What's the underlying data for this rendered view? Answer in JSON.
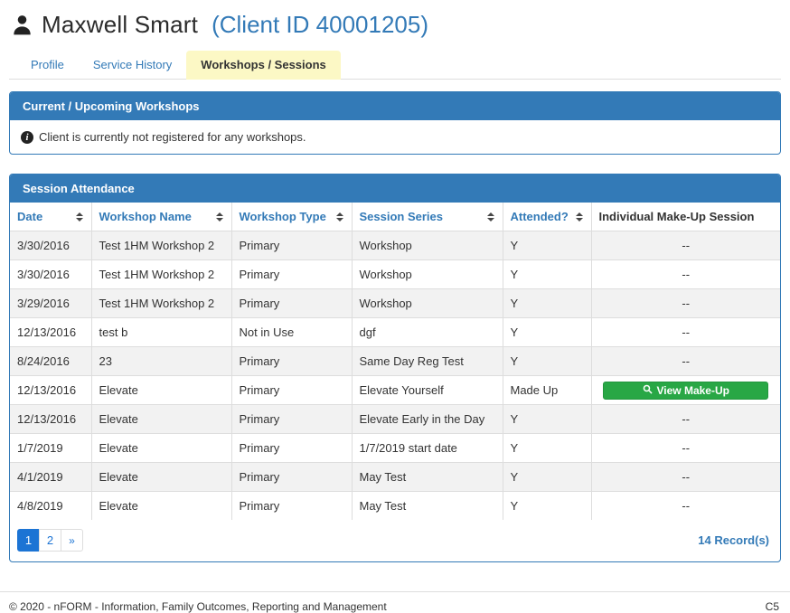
{
  "header": {
    "client_name": "Maxwell Smart",
    "client_id": "(Client ID 40001205)"
  },
  "tabs": [
    {
      "label": "Profile",
      "active": false
    },
    {
      "label": "Service History",
      "active": false
    },
    {
      "label": "Workshops / Sessions",
      "active": true
    }
  ],
  "workshops_panel": {
    "title": "Current / Upcoming Workshops",
    "empty_message": "Client is currently not registered for any workshops."
  },
  "attendance_panel": {
    "title": "Session Attendance",
    "columns": [
      {
        "label": "Date",
        "sortable": true
      },
      {
        "label": "Workshop Name",
        "sortable": true
      },
      {
        "label": "Workshop Type",
        "sortable": true
      },
      {
        "label": "Session Series",
        "sortable": true
      },
      {
        "label": "Attended?",
        "sortable": true
      },
      {
        "label": "Individual Make-Up Session",
        "sortable": false
      }
    ],
    "rows": [
      {
        "date": "3/30/2016",
        "workshop_name": "Test 1HM Workshop 2",
        "workshop_type": "Primary",
        "session_series": "Workshop",
        "attended": "Y",
        "makeup": "--"
      },
      {
        "date": "3/30/2016",
        "workshop_name": "Test 1HM Workshop 2",
        "workshop_type": "Primary",
        "session_series": "Workshop",
        "attended": "Y",
        "makeup": "--"
      },
      {
        "date": "3/29/2016",
        "workshop_name": "Test 1HM Workshop 2",
        "workshop_type": "Primary",
        "session_series": "Workshop",
        "attended": "Y",
        "makeup": "--"
      },
      {
        "date": "12/13/2016",
        "workshop_name": "test b",
        "workshop_type": "Not in Use",
        "session_series": "dgf",
        "attended": "Y",
        "makeup": "--"
      },
      {
        "date": "8/24/2016",
        "workshop_name": "23",
        "workshop_type": "Primary",
        "session_series": "Same Day Reg Test",
        "attended": "Y",
        "makeup": "--"
      },
      {
        "date": "12/13/2016",
        "workshop_name": "Elevate",
        "workshop_type": "Primary",
        "session_series": "Elevate Yourself",
        "attended": "Made Up",
        "makeup_button": "View Make-Up"
      },
      {
        "date": "12/13/2016",
        "workshop_name": "Elevate",
        "workshop_type": "Primary",
        "session_series": "Elevate Early in the Day",
        "attended": "Y",
        "makeup": "--"
      },
      {
        "date": "1/7/2019",
        "workshop_name": "Elevate",
        "workshop_type": "Primary",
        "session_series": "1/7/2019 start date",
        "attended": "Y",
        "makeup": "--"
      },
      {
        "date": "4/1/2019",
        "workshop_name": "Elevate",
        "workshop_type": "Primary",
        "session_series": "May Test",
        "attended": "Y",
        "makeup": "--"
      },
      {
        "date": "4/8/2019",
        "workshop_name": "Elevate",
        "workshop_type": "Primary",
        "session_series": "May Test",
        "attended": "Y",
        "makeup": "--"
      }
    ],
    "pagination": {
      "pages": [
        "1",
        "2",
        "»"
      ],
      "active_page": "1",
      "record_count": "14 Record(s)"
    }
  },
  "footer": {
    "copyright": "© 2020 - nFORM - Information, Family Outcomes, Reporting and Management",
    "page_code": "C5"
  },
  "colors": {
    "panel_blue": "#337ab7",
    "active_tab_yellow": "#fcf8c5",
    "pagination_active_blue": "#1c74d4",
    "makeup_button_green": "#28a745",
    "stripe_gray": "#f2f2f2"
  }
}
